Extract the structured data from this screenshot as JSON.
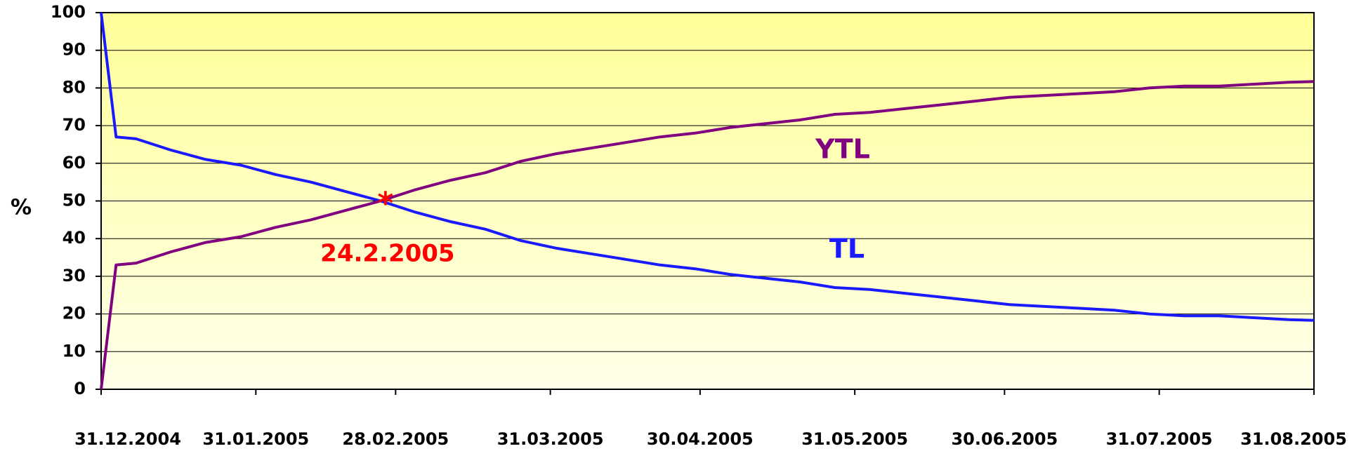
{
  "chart_data": {
    "type": "line",
    "ylabel": "%",
    "x": [
      "2004-12-31",
      "2005-01-03",
      "2005-01-07",
      "2005-01-14",
      "2005-01-21",
      "2005-01-28",
      "2005-02-04",
      "2005-02-11",
      "2005-02-18",
      "2005-02-25",
      "2005-03-04",
      "2005-03-11",
      "2005-03-18",
      "2005-03-25",
      "2005-04-01",
      "2005-04-08",
      "2005-04-15",
      "2005-04-22",
      "2005-04-29",
      "2005-05-06",
      "2005-05-13",
      "2005-05-20",
      "2005-05-27",
      "2005-06-03",
      "2005-06-10",
      "2005-06-17",
      "2005-06-24",
      "2005-07-01",
      "2005-07-08",
      "2005-07-15",
      "2005-07-22",
      "2005-07-29",
      "2005-08-05",
      "2005-08-12",
      "2005-08-19",
      "2005-08-26",
      "2005-08-31"
    ],
    "series": [
      {
        "name": "TL",
        "color": "#1a1aff",
        "values": [
          100,
          67,
          66.5,
          63.5,
          61,
          59.5,
          57,
          55,
          52.5,
          50,
          47,
          44.5,
          42.5,
          39.5,
          37.5,
          36,
          34.5,
          33,
          32,
          30.5,
          29.5,
          28.5,
          27,
          26.5,
          25.5,
          24.5,
          23.5,
          22.5,
          22,
          21.5,
          21,
          20,
          19.5,
          19.5,
          19,
          18.5,
          18.3
        ]
      },
      {
        "name": "YTL",
        "color": "#800080",
        "values": [
          0,
          33,
          33.5,
          36.5,
          39,
          40.5,
          43,
          45,
          47.5,
          50,
          53,
          55.5,
          57.5,
          60.5,
          62.5,
          64,
          65.5,
          67,
          68,
          69.5,
          70.5,
          71.5,
          73,
          73.5,
          74.5,
          75.5,
          76.5,
          77.5,
          78,
          78.5,
          79,
          80,
          80.5,
          80.5,
          81,
          81.5,
          81.7
        ]
      }
    ],
    "marker": {
      "x": "2005-02-24",
      "y": 50,
      "label": "24.2.2005",
      "color": "#ff0000"
    },
    "xlim": [
      "2004-12-31",
      "2005-08-31"
    ],
    "xticks": [
      {
        "value": "2004-12-31",
        "label": "31.12.2004"
      },
      {
        "value": "2005-01-31",
        "label": "31.01.2005"
      },
      {
        "value": "2005-02-28",
        "label": "28.02.2005"
      },
      {
        "value": "2005-03-31",
        "label": "31.03.2005"
      },
      {
        "value": "2005-04-30",
        "label": "30.04.2005"
      },
      {
        "value": "2005-05-31",
        "label": "31.05.2005"
      },
      {
        "value": "2005-06-30",
        "label": "30.06.2005"
      },
      {
        "value": "2005-07-31",
        "label": "31.07.2005"
      },
      {
        "value": "2005-08-31",
        "label": "31.08.2005"
      }
    ],
    "ylim": [
      0,
      100
    ],
    "yticks": [
      0,
      10,
      20,
      30,
      40,
      50,
      60,
      70,
      80,
      90,
      100
    ],
    "grid": true
  }
}
